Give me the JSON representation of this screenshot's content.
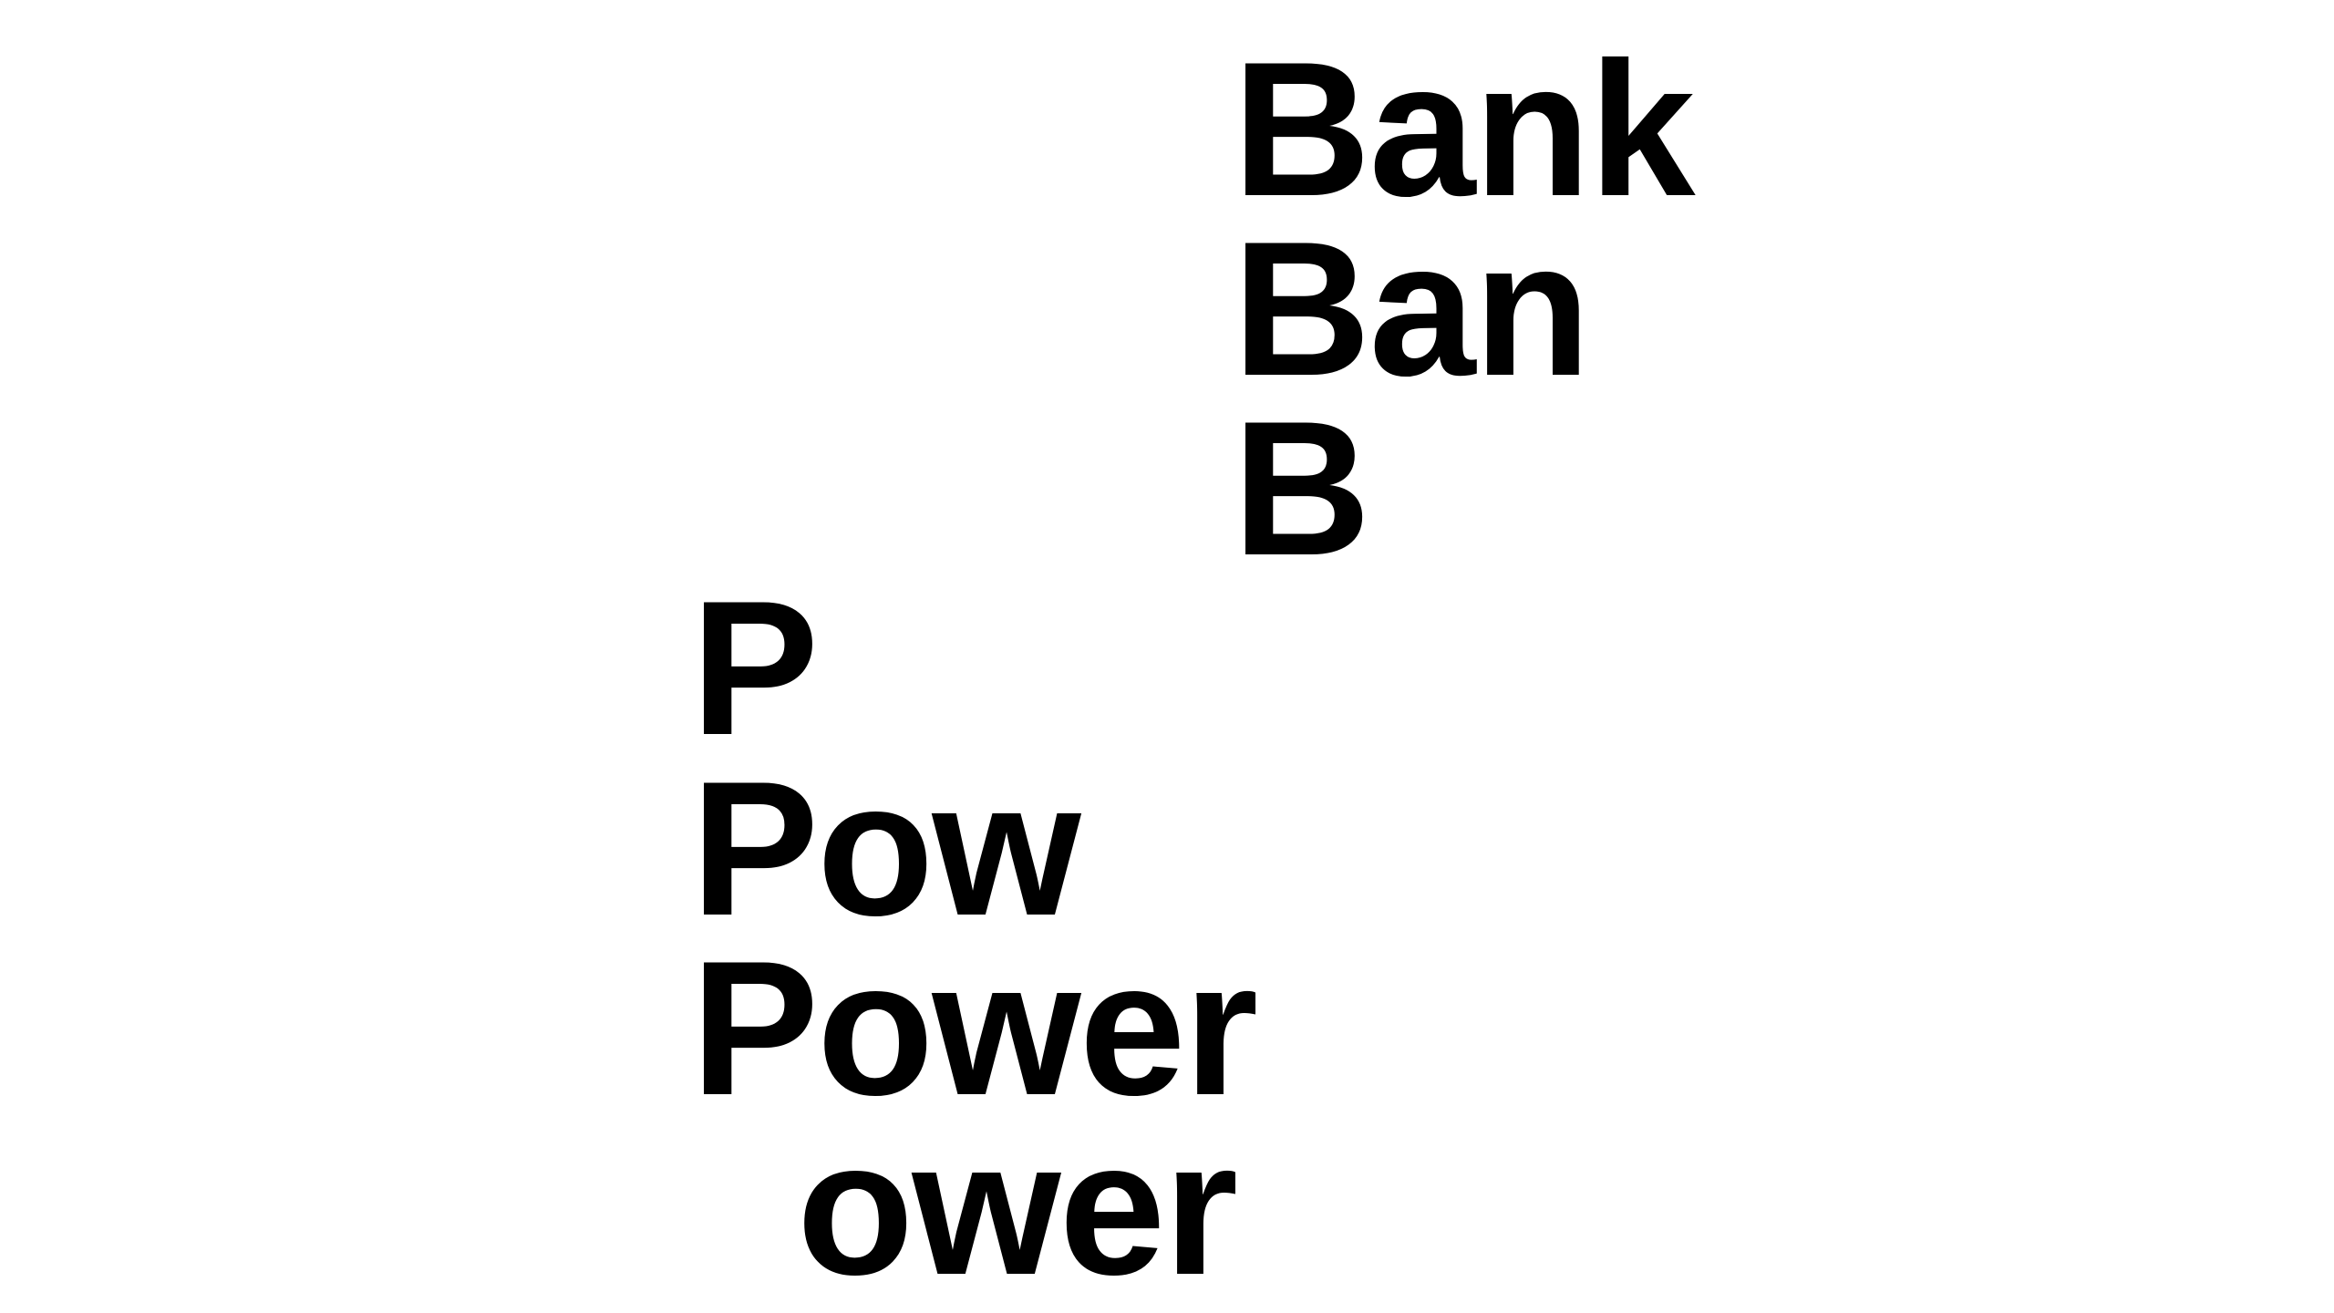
{
  "words": {
    "line1": "Bank",
    "line2": "Ban",
    "line3": "B",
    "line4": "P",
    "line5": "Pow",
    "line6": "Power",
    "line7": "ower"
  },
  "colors": {
    "text": "#000000",
    "background": "#ffffff"
  }
}
